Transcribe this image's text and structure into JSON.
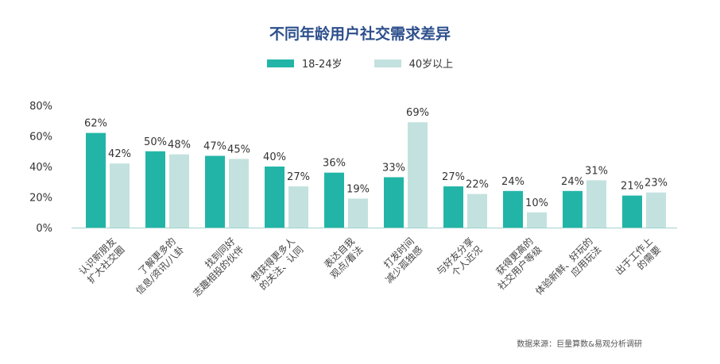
{
  "chart_data": {
    "type": "bar",
    "title": "不同年龄用户社交需求差异",
    "categories": [
      [
        "认识新朋友",
        "扩大社交圈"
      ],
      [
        "了解更多的",
        "信息/资讯/八卦"
      ],
      [
        "找到同好",
        "志趣相投的伙伴"
      ],
      [
        "想获得更多人",
        "的关注、认同"
      ],
      [
        "表达自我",
        "观点/看法"
      ],
      [
        "打发时间",
        "减少孤独感"
      ],
      [
        "与好友分享",
        "个人近况"
      ],
      [
        "获得更高的",
        "社交用户等级"
      ],
      [
        "体验新鲜、好玩的",
        "应用玩法"
      ],
      [
        "出于工作上",
        "的需要"
      ]
    ],
    "series": [
      {
        "name": "18-24岁",
        "color": "#22b5a7",
        "values": [
          62,
          50,
          47,
          40,
          36,
          33,
          27,
          24,
          24,
          21
        ]
      },
      {
        "name": "40岁以上",
        "color": "#c3e2df",
        "values": [
          42,
          48,
          45,
          27,
          19,
          69,
          22,
          10,
          31,
          23
        ]
      }
    ],
    "yticks": [
      "0%",
      "20%",
      "40%",
      "60%",
      "80%"
    ],
    "ylim": [
      0,
      80
    ],
    "legend": "top-center",
    "source": "数据来源：巨量算数&易观分析调研"
  }
}
